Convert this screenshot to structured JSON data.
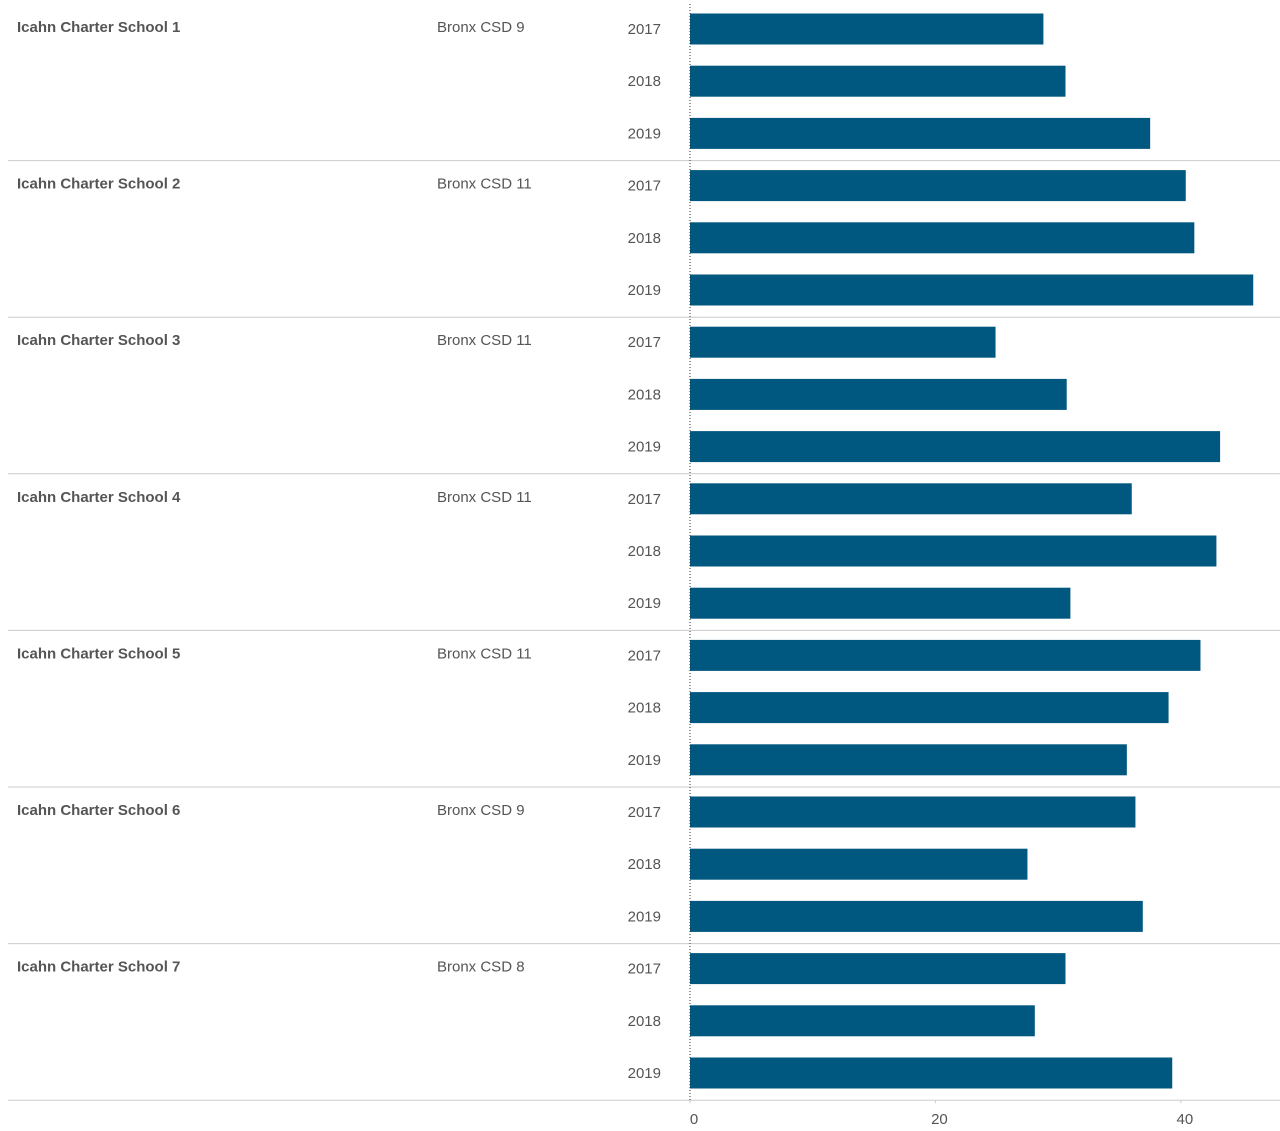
{
  "chart_data": {
    "type": "bar",
    "orientation": "horizontal",
    "color": "#00577f",
    "xlim": [
      0,
      48
    ],
    "xticks": [
      0,
      20,
      40
    ],
    "rows": [
      {
        "school": "Icahn Charter School 1",
        "district": "Bronx CSD 9",
        "categories": [
          "2017",
          "2018",
          "2019"
        ],
        "values": [
          28.8,
          30.6,
          37.5
        ]
      },
      {
        "school": "Icahn Charter School 2",
        "district": "Bronx CSD 11",
        "categories": [
          "2017",
          "2018",
          "2019"
        ],
        "values": [
          40.4,
          41.1,
          45.9
        ]
      },
      {
        "school": "Icahn Charter School 3",
        "district": "Bronx CSD 11",
        "categories": [
          "2017",
          "2018",
          "2019"
        ],
        "values": [
          24.9,
          30.7,
          43.2
        ]
      },
      {
        "school": "Icahn Charter School 4",
        "district": "Bronx CSD 11",
        "categories": [
          "2017",
          "2018",
          "2019"
        ],
        "values": [
          36.0,
          42.9,
          31.0
        ]
      },
      {
        "school": "Icahn Charter School 5",
        "district": "Bronx CSD 11",
        "categories": [
          "2017",
          "2018",
          "2019"
        ],
        "values": [
          41.6,
          39.0,
          35.6
        ]
      },
      {
        "school": "Icahn Charter School 6",
        "district": "Bronx CSD 9",
        "categories": [
          "2017",
          "2018",
          "2019"
        ],
        "values": [
          36.3,
          27.5,
          36.9
        ]
      },
      {
        "school": "Icahn Charter School 7",
        "district": "Bronx CSD 8",
        "categories": [
          "2017",
          "2018",
          "2019"
        ],
        "values": [
          30.6,
          28.1,
          39.3
        ]
      }
    ]
  }
}
